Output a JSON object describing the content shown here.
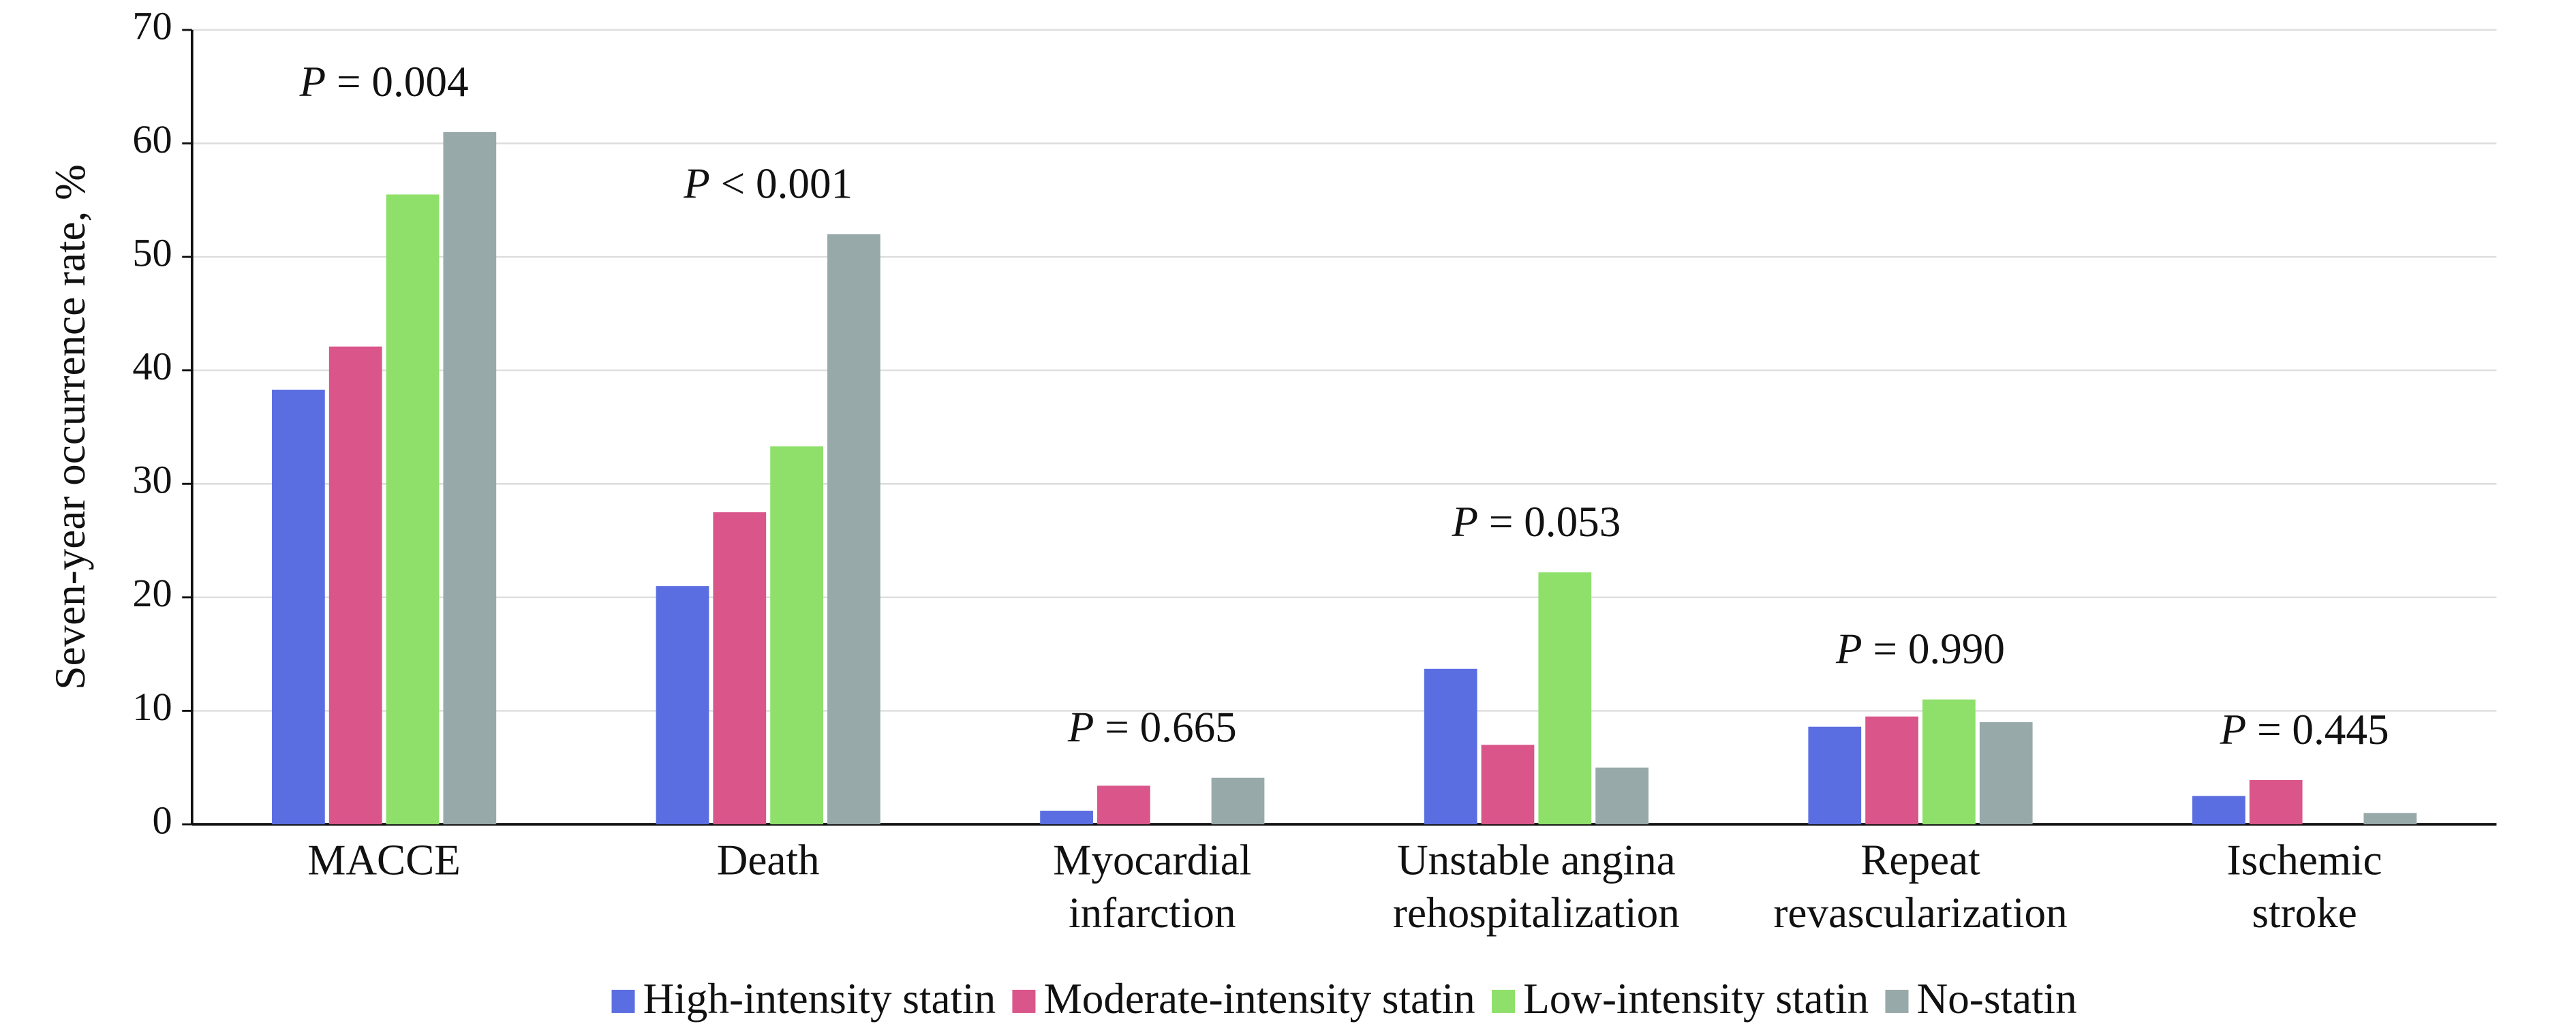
{
  "chart_data": {
    "type": "bar",
    "ylabel": "Seven-year occurrence rate, %",
    "categories": [
      "MACCE",
      "Death",
      "Myocardial\ninfarction",
      "Unstable angina\nrehospitalization",
      "Repeat\nrevascularization",
      "Ischemic\nstroke"
    ],
    "series": [
      {
        "name": "High-intensity statin",
        "color": "#5b6ee1",
        "values": [
          38.3,
          21,
          1.2,
          13.7,
          8.6,
          2.5
        ]
      },
      {
        "name": "Moderate-intensity statin",
        "color": "#d9558a",
        "values": [
          42.1,
          27.5,
          3.4,
          7,
          9.5,
          3.9
        ]
      },
      {
        "name": "Low-intensity statin",
        "color": "#8ee06a",
        "values": [
          55.5,
          33.3,
          0,
          22.2,
          11,
          0
        ]
      },
      {
        "name": "No-statin",
        "color": "#98a9aa",
        "values": [
          61,
          52,
          4.1,
          5,
          9,
          1
        ]
      }
    ],
    "annotations": [
      "P = 0.004",
      "P < 0.001",
      "P = 0.665",
      "P = 0.053",
      "P = 0.990",
      "P = 0.445"
    ],
    "ylim": [
      0,
      70
    ],
    "yticks": [
      0,
      10,
      20,
      30,
      40,
      50,
      60,
      70
    ],
    "grid": true
  }
}
